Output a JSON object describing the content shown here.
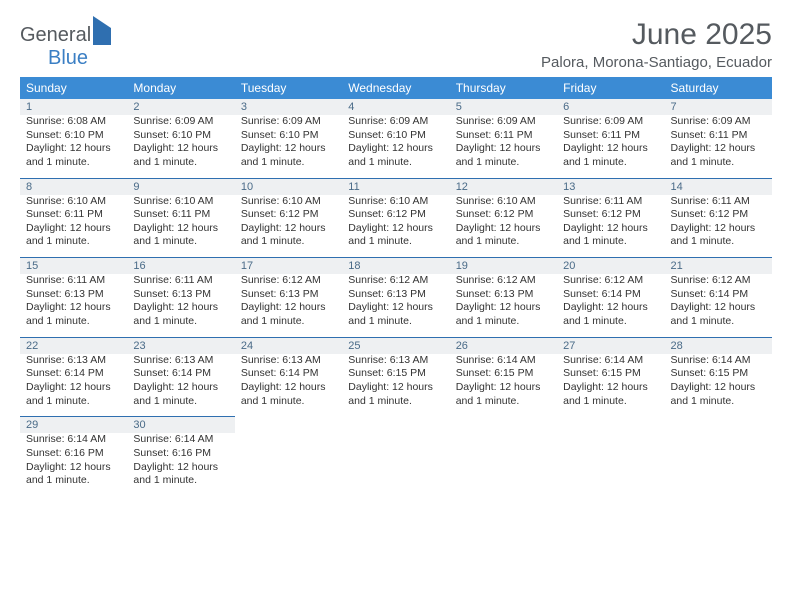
{
  "brand": {
    "part1": "General",
    "part2": "Blue"
  },
  "title": "June 2025",
  "location": "Palora, Morona-Santiago, Ecuador",
  "colors": {
    "header_bg": "#3b8bd4",
    "daynum_bg": "#eef0f2",
    "rule": "#2f6fb0",
    "text": "#333333",
    "title_text": "#555a5f"
  },
  "days_of_week": [
    "Sunday",
    "Monday",
    "Tuesday",
    "Wednesday",
    "Thursday",
    "Friday",
    "Saturday"
  ],
  "weeks": [
    [
      {
        "n": "1",
        "sr": "6:08 AM",
        "ss": "6:10 PM",
        "dl": "12 hours and 1 minute."
      },
      {
        "n": "2",
        "sr": "6:09 AM",
        "ss": "6:10 PM",
        "dl": "12 hours and 1 minute."
      },
      {
        "n": "3",
        "sr": "6:09 AM",
        "ss": "6:10 PM",
        "dl": "12 hours and 1 minute."
      },
      {
        "n": "4",
        "sr": "6:09 AM",
        "ss": "6:10 PM",
        "dl": "12 hours and 1 minute."
      },
      {
        "n": "5",
        "sr": "6:09 AM",
        "ss": "6:11 PM",
        "dl": "12 hours and 1 minute."
      },
      {
        "n": "6",
        "sr": "6:09 AM",
        "ss": "6:11 PM",
        "dl": "12 hours and 1 minute."
      },
      {
        "n": "7",
        "sr": "6:09 AM",
        "ss": "6:11 PM",
        "dl": "12 hours and 1 minute."
      }
    ],
    [
      {
        "n": "8",
        "sr": "6:10 AM",
        "ss": "6:11 PM",
        "dl": "12 hours and 1 minute."
      },
      {
        "n": "9",
        "sr": "6:10 AM",
        "ss": "6:11 PM",
        "dl": "12 hours and 1 minute."
      },
      {
        "n": "10",
        "sr": "6:10 AM",
        "ss": "6:12 PM",
        "dl": "12 hours and 1 minute."
      },
      {
        "n": "11",
        "sr": "6:10 AM",
        "ss": "6:12 PM",
        "dl": "12 hours and 1 minute."
      },
      {
        "n": "12",
        "sr": "6:10 AM",
        "ss": "6:12 PM",
        "dl": "12 hours and 1 minute."
      },
      {
        "n": "13",
        "sr": "6:11 AM",
        "ss": "6:12 PM",
        "dl": "12 hours and 1 minute."
      },
      {
        "n": "14",
        "sr": "6:11 AM",
        "ss": "6:12 PM",
        "dl": "12 hours and 1 minute."
      }
    ],
    [
      {
        "n": "15",
        "sr": "6:11 AM",
        "ss": "6:13 PM",
        "dl": "12 hours and 1 minute."
      },
      {
        "n": "16",
        "sr": "6:11 AM",
        "ss": "6:13 PM",
        "dl": "12 hours and 1 minute."
      },
      {
        "n": "17",
        "sr": "6:12 AM",
        "ss": "6:13 PM",
        "dl": "12 hours and 1 minute."
      },
      {
        "n": "18",
        "sr": "6:12 AM",
        "ss": "6:13 PM",
        "dl": "12 hours and 1 minute."
      },
      {
        "n": "19",
        "sr": "6:12 AM",
        "ss": "6:13 PM",
        "dl": "12 hours and 1 minute."
      },
      {
        "n": "20",
        "sr": "6:12 AM",
        "ss": "6:14 PM",
        "dl": "12 hours and 1 minute."
      },
      {
        "n": "21",
        "sr": "6:12 AM",
        "ss": "6:14 PM",
        "dl": "12 hours and 1 minute."
      }
    ],
    [
      {
        "n": "22",
        "sr": "6:13 AM",
        "ss": "6:14 PM",
        "dl": "12 hours and 1 minute."
      },
      {
        "n": "23",
        "sr": "6:13 AM",
        "ss": "6:14 PM",
        "dl": "12 hours and 1 minute."
      },
      {
        "n": "24",
        "sr": "6:13 AM",
        "ss": "6:14 PM",
        "dl": "12 hours and 1 minute."
      },
      {
        "n": "25",
        "sr": "6:13 AM",
        "ss": "6:15 PM",
        "dl": "12 hours and 1 minute."
      },
      {
        "n": "26",
        "sr": "6:14 AM",
        "ss": "6:15 PM",
        "dl": "12 hours and 1 minute."
      },
      {
        "n": "27",
        "sr": "6:14 AM",
        "ss": "6:15 PM",
        "dl": "12 hours and 1 minute."
      },
      {
        "n": "28",
        "sr": "6:14 AM",
        "ss": "6:15 PM",
        "dl": "12 hours and 1 minute."
      }
    ],
    [
      {
        "n": "29",
        "sr": "6:14 AM",
        "ss": "6:16 PM",
        "dl": "12 hours and 1 minute."
      },
      {
        "n": "30",
        "sr": "6:14 AM",
        "ss": "6:16 PM",
        "dl": "12 hours and 1 minute."
      },
      null,
      null,
      null,
      null,
      null
    ]
  ],
  "labels": {
    "sunrise": "Sunrise: ",
    "sunset": "Sunset: ",
    "daylight": "Daylight: "
  }
}
